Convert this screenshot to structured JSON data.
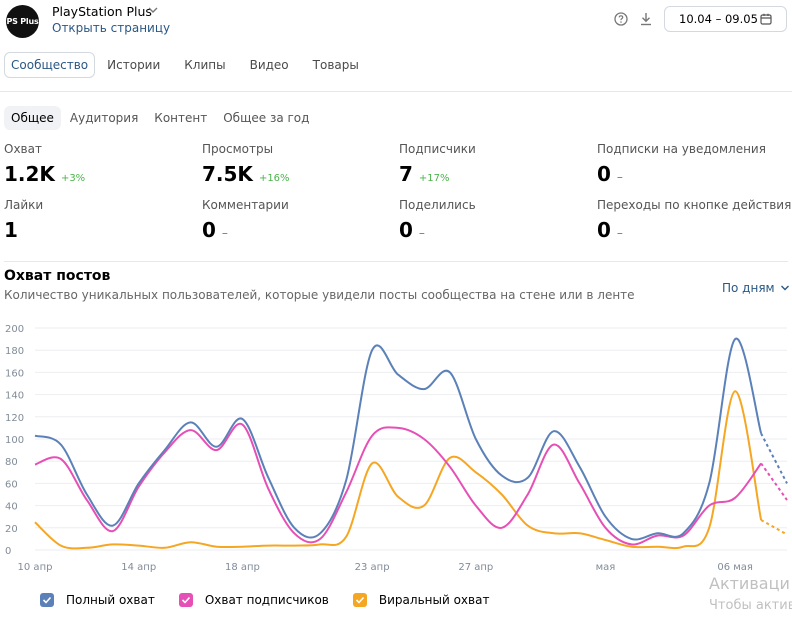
{
  "header": {
    "avatar_text": "PS Plus",
    "title": "PlayStation Plus",
    "open_link": "Открыть страницу",
    "date_range": "10.04 – 09.05",
    "help_icon": "help-circle-icon",
    "download_icon": "download-icon",
    "calendar_icon": "calendar-icon"
  },
  "tabs": [
    "Сообщество",
    "Истории",
    "Клипы",
    "Видео",
    "Товары"
  ],
  "subtabs": [
    "Общее",
    "Аудитория",
    "Контент",
    "Общее за год"
  ],
  "stats": [
    {
      "label": "Охват",
      "value": "1.2K",
      "delta": "+3%"
    },
    {
      "label": "Просмотры",
      "value": "7.5K",
      "delta": "+16%"
    },
    {
      "label": "Подписчики",
      "value": "7",
      "delta": "+17%"
    },
    {
      "label": "Подписки на уведомления",
      "value": "0",
      "delta": "–"
    },
    {
      "label": "Лайки",
      "value": "1",
      "delta": ""
    },
    {
      "label": "Комментарии",
      "value": "0",
      "delta": "–"
    },
    {
      "label": "Поделились",
      "value": "0",
      "delta": "–"
    },
    {
      "label": "Переходы по кнопке действия",
      "value": "0",
      "delta": "–"
    }
  ],
  "chart": {
    "title": "Охват постов",
    "subtitle": "Количество уникальных пользователей, которые увидели посты сообщества на стене или в ленте",
    "period_select": "По дням"
  },
  "legend": {
    "full": "Полный охват",
    "subscribers": "Охват подписчиков",
    "viral": "Виральный охват"
  },
  "watermark": {
    "title": "Активаци",
    "sub": "Чтобы актив"
  },
  "chart_data": {
    "type": "line",
    "ylim": [
      0,
      200
    ],
    "y_ticks": [
      0,
      20,
      40,
      60,
      80,
      100,
      120,
      140,
      160,
      180,
      200
    ],
    "x_tick_labels": [
      "10 апр",
      "14 апр",
      "18 апр",
      "23 апр",
      "27 апр",
      "мая",
      "06 мая"
    ],
    "x_tick_days": [
      0,
      4,
      8,
      13,
      17,
      22,
      27
    ],
    "x_days": [
      0,
      1,
      2,
      3,
      4,
      5,
      6,
      7,
      8,
      9,
      10,
      11,
      12,
      13,
      14,
      15,
      16,
      17,
      18,
      19,
      20,
      21,
      22,
      23,
      24,
      25,
      26,
      27,
      28,
      29
    ],
    "series": [
      {
        "name": "Полный охват",
        "color": "#5b81b8",
        "values": [
          103,
          95,
          50,
          22,
          60,
          90,
          115,
          93,
          118,
          65,
          20,
          15,
          63,
          180,
          158,
          145,
          160,
          100,
          67,
          65,
          107,
          75,
          30,
          10,
          15,
          15,
          60,
          190,
          105,
          60
        ],
        "dashed_from": 28
      },
      {
        "name": "Охват подписчиков",
        "color": "#e64fb5",
        "values": [
          77,
          82,
          45,
          17,
          57,
          88,
          108,
          90,
          113,
          55,
          15,
          10,
          52,
          103,
          110,
          100,
          75,
          40,
          20,
          50,
          95,
          60,
          20,
          5,
          13,
          13,
          40,
          47,
          78,
          45
        ],
        "dashed_from": 28
      },
      {
        "name": "Виральный охват",
        "color": "#f5a623",
        "values": [
          25,
          4,
          2,
          5,
          4,
          2,
          7,
          3,
          3,
          4,
          4,
          5,
          12,
          78,
          48,
          40,
          83,
          70,
          50,
          22,
          15,
          15,
          9,
          3,
          3,
          3,
          20,
          143,
          27,
          14
        ],
        "dashed_from": 28
      }
    ]
  }
}
